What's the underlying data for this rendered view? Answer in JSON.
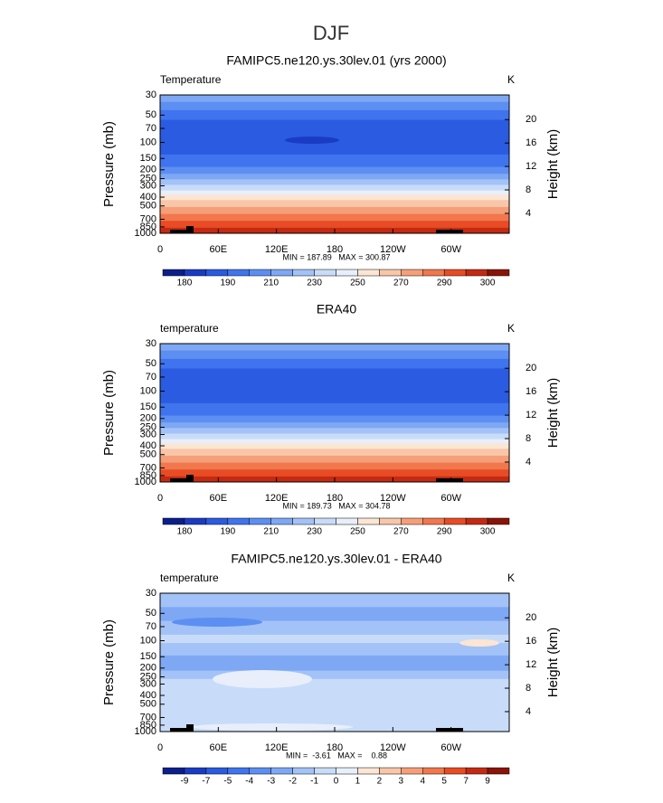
{
  "title": "DJF",
  "chart_data": [
    {
      "type": "contour",
      "title": "FAMIPC5.ne120.ys.30lev.01 (yrs 2000)",
      "variable": "Temperature",
      "units": "K",
      "ylabel": "Pressure (mb)",
      "y2label": "Height (km)",
      "yscale": "log",
      "xlim": [
        0,
        360
      ],
      "xticks": [
        0,
        {
          "value": 60,
          "label": "60E"
        },
        {
          "value": 120,
          "label": "120E"
        },
        180,
        {
          "value": 240,
          "label": "120W"
        },
        {
          "value": 300,
          "label": "60W"
        }
      ],
      "ylim": [
        1000,
        30
      ],
      "yticks": [
        30,
        50,
        70,
        100,
        150,
        200,
        250,
        300,
        400,
        500,
        700,
        850,
        1000
      ],
      "y2lim": [
        0.6,
        24.2
      ],
      "y2ticks": [
        4,
        8,
        12,
        16,
        20
      ],
      "stats": "MIN = 187.89   MAX = 300.87",
      "colorbar": {
        "colors": [
          "#0b1f8c",
          "#1a3cc4",
          "#2a5be0",
          "#3f74ee",
          "#5d8ff2",
          "#7ea8f4",
          "#a3c2f7",
          "#c8dcf9",
          "#e8effb",
          "#fbe5d3",
          "#f8c6a8",
          "#f59f79",
          "#f1774d",
          "#e84c25",
          "#c42a12",
          "#8a1408"
        ],
        "labels": [
          180,
          190,
          210,
          230,
          250,
          270,
          290,
          300
        ]
      }
    },
    {
      "type": "contour",
      "title": "ERA40",
      "variable": "temperature",
      "units": "K",
      "ylabel": "Pressure (mb)",
      "y2label": "Height (km)",
      "yscale": "log",
      "xlim": [
        0,
        360
      ],
      "xticks": [
        0,
        {
          "value": 60,
          "label": "60E"
        },
        {
          "value": 120,
          "label": "120E"
        },
        180,
        {
          "value": 240,
          "label": "120W"
        },
        {
          "value": 300,
          "label": "60W"
        }
      ],
      "ylim": [
        1000,
        30
      ],
      "yticks": [
        30,
        50,
        70,
        100,
        150,
        200,
        250,
        300,
        400,
        500,
        700,
        850,
        1000
      ],
      "y2lim": [
        0.6,
        24.2
      ],
      "y2ticks": [
        4,
        8,
        12,
        16,
        20
      ],
      "stats": "MIN = 189.73   MAX = 304.78",
      "colorbar": {
        "colors": [
          "#0b1f8c",
          "#1a3cc4",
          "#2a5be0",
          "#3f74ee",
          "#5d8ff2",
          "#7ea8f4",
          "#a3c2f7",
          "#c8dcf9",
          "#e8effb",
          "#fbe5d3",
          "#f8c6a8",
          "#f59f79",
          "#f1774d",
          "#e84c25",
          "#c42a12",
          "#8a1408"
        ],
        "labels": [
          180,
          190,
          210,
          230,
          250,
          270,
          290,
          300
        ]
      }
    },
    {
      "type": "contour",
      "title": "FAMIPC5.ne120.ys.30lev.01 - ERA40",
      "variable": "temperature",
      "units": "K",
      "ylabel": "Pressure (mb)",
      "y2label": "Height (km)",
      "yscale": "log",
      "xlim": [
        0,
        360
      ],
      "xticks": [
        0,
        {
          "value": 60,
          "label": "60E"
        },
        {
          "value": 120,
          "label": "120E"
        },
        180,
        {
          "value": 240,
          "label": "120W"
        },
        {
          "value": 300,
          "label": "60W"
        }
      ],
      "ylim": [
        1000,
        30
      ],
      "yticks": [
        30,
        50,
        70,
        100,
        150,
        200,
        250,
        300,
        400,
        500,
        700,
        850,
        1000
      ],
      "y2lim": [
        0.6,
        24.2
      ],
      "y2ticks": [
        4,
        8,
        12,
        16,
        20
      ],
      "stats": "MIN =  -3.61   MAX =    0.88",
      "colorbar": {
        "colors": [
          "#0b1f8c",
          "#1a3cc4",
          "#2a5be0",
          "#3f74ee",
          "#5d8ff2",
          "#7ea8f4",
          "#a3c2f7",
          "#c8dcf9",
          "#e8effb",
          "#fbe5d3",
          "#f8c6a8",
          "#f59f79",
          "#f1774d",
          "#e84c25",
          "#c42a12",
          "#8a1408"
        ],
        "labels": [
          -9,
          -7,
          -5,
          -4,
          -3,
          -2,
          -1,
          0,
          1,
          2,
          3,
          4,
          5,
          7,
          9
        ]
      }
    }
  ]
}
